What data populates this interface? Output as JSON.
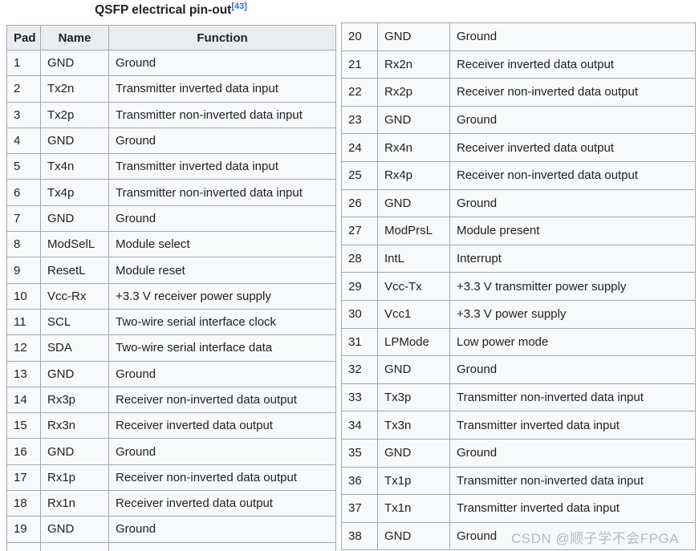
{
  "title": {
    "text": "QSFP electrical pin-out",
    "reference": "[43]"
  },
  "table": {
    "headers": {
      "pad": "Pad",
      "name": "Name",
      "function": "Function"
    },
    "left_rows": [
      {
        "pad": "1",
        "name": "GND",
        "function": "Ground"
      },
      {
        "pad": "2",
        "name": "Tx2n",
        "function": "Transmitter inverted data input"
      },
      {
        "pad": "3",
        "name": "Tx2p",
        "function": "Transmitter non-inverted data input"
      },
      {
        "pad": "4",
        "name": "GND",
        "function": "Ground"
      },
      {
        "pad": "5",
        "name": "Tx4n",
        "function": "Transmitter inverted data input"
      },
      {
        "pad": "6",
        "name": "Tx4p",
        "function": "Transmitter non-inverted data input"
      },
      {
        "pad": "7",
        "name": "GND",
        "function": "Ground"
      },
      {
        "pad": "8",
        "name": "ModSelL",
        "function": "Module select"
      },
      {
        "pad": "9",
        "name": "ResetL",
        "function": "Module reset"
      },
      {
        "pad": "10",
        "name": "Vcc-Rx",
        "function": "+3.3 V receiver power supply"
      },
      {
        "pad": "11",
        "name": "SCL",
        "function": "Two-wire serial interface clock"
      },
      {
        "pad": "12",
        "name": "SDA",
        "function": "Two-wire serial interface data"
      },
      {
        "pad": "13",
        "name": "GND",
        "function": "Ground"
      },
      {
        "pad": "14",
        "name": "Rx3p",
        "function": "Receiver non-inverted data output"
      },
      {
        "pad": "15",
        "name": "Rx3n",
        "function": "Receiver inverted data output"
      },
      {
        "pad": "16",
        "name": "GND",
        "function": "Ground"
      },
      {
        "pad": "17",
        "name": "Rx1p",
        "function": "Receiver non-inverted data output"
      },
      {
        "pad": "18",
        "name": "Rx1n",
        "function": "Receiver inverted data output"
      },
      {
        "pad": "19",
        "name": "GND",
        "function": "Ground"
      }
    ],
    "right_rows": [
      {
        "pad": "20",
        "name": "GND",
        "function": "Ground"
      },
      {
        "pad": "21",
        "name": "Rx2n",
        "function": "Receiver inverted data output"
      },
      {
        "pad": "22",
        "name": "Rx2p",
        "function": "Receiver non-inverted data output"
      },
      {
        "pad": "23",
        "name": "GND",
        "function": "Ground"
      },
      {
        "pad": "24",
        "name": "Rx4n",
        "function": "Receiver inverted data output"
      },
      {
        "pad": "25",
        "name": "Rx4p",
        "function": "Receiver non-inverted data output"
      },
      {
        "pad": "26",
        "name": "GND",
        "function": "Ground"
      },
      {
        "pad": "27",
        "name": "ModPrsL",
        "function": "Module present"
      },
      {
        "pad": "28",
        "name": "IntL",
        "function": "Interrupt"
      },
      {
        "pad": "29",
        "name": "Vcc-Tx",
        "function": "+3.3 V transmitter power supply"
      },
      {
        "pad": "30",
        "name": "Vcc1",
        "function": "+3.3 V power supply"
      },
      {
        "pad": "31",
        "name": "LPMode",
        "function": "Low power mode"
      },
      {
        "pad": "32",
        "name": "GND",
        "function": "Ground"
      },
      {
        "pad": "33",
        "name": "Tx3p",
        "function": "Transmitter non-inverted data input"
      },
      {
        "pad": "34",
        "name": "Tx3n",
        "function": "Transmitter inverted data input"
      },
      {
        "pad": "35",
        "name": "GND",
        "function": "Ground"
      },
      {
        "pad": "36",
        "name": "Tx1p",
        "function": "Transmitter non-inverted data input"
      },
      {
        "pad": "37",
        "name": "Tx1n",
        "function": "Transmitter inverted data input"
      },
      {
        "pad": "38",
        "name": "GND",
        "function": "Ground"
      }
    ]
  },
  "watermark": "CSDN @顺子学不会FPGA",
  "colors": {
    "header_bg": "#eaecf0",
    "cell_bg": "#f8f9fa",
    "border": "#a2a9b1",
    "text": "#202122",
    "link": "#3366cc",
    "watermark": "#b5b9c0"
  }
}
